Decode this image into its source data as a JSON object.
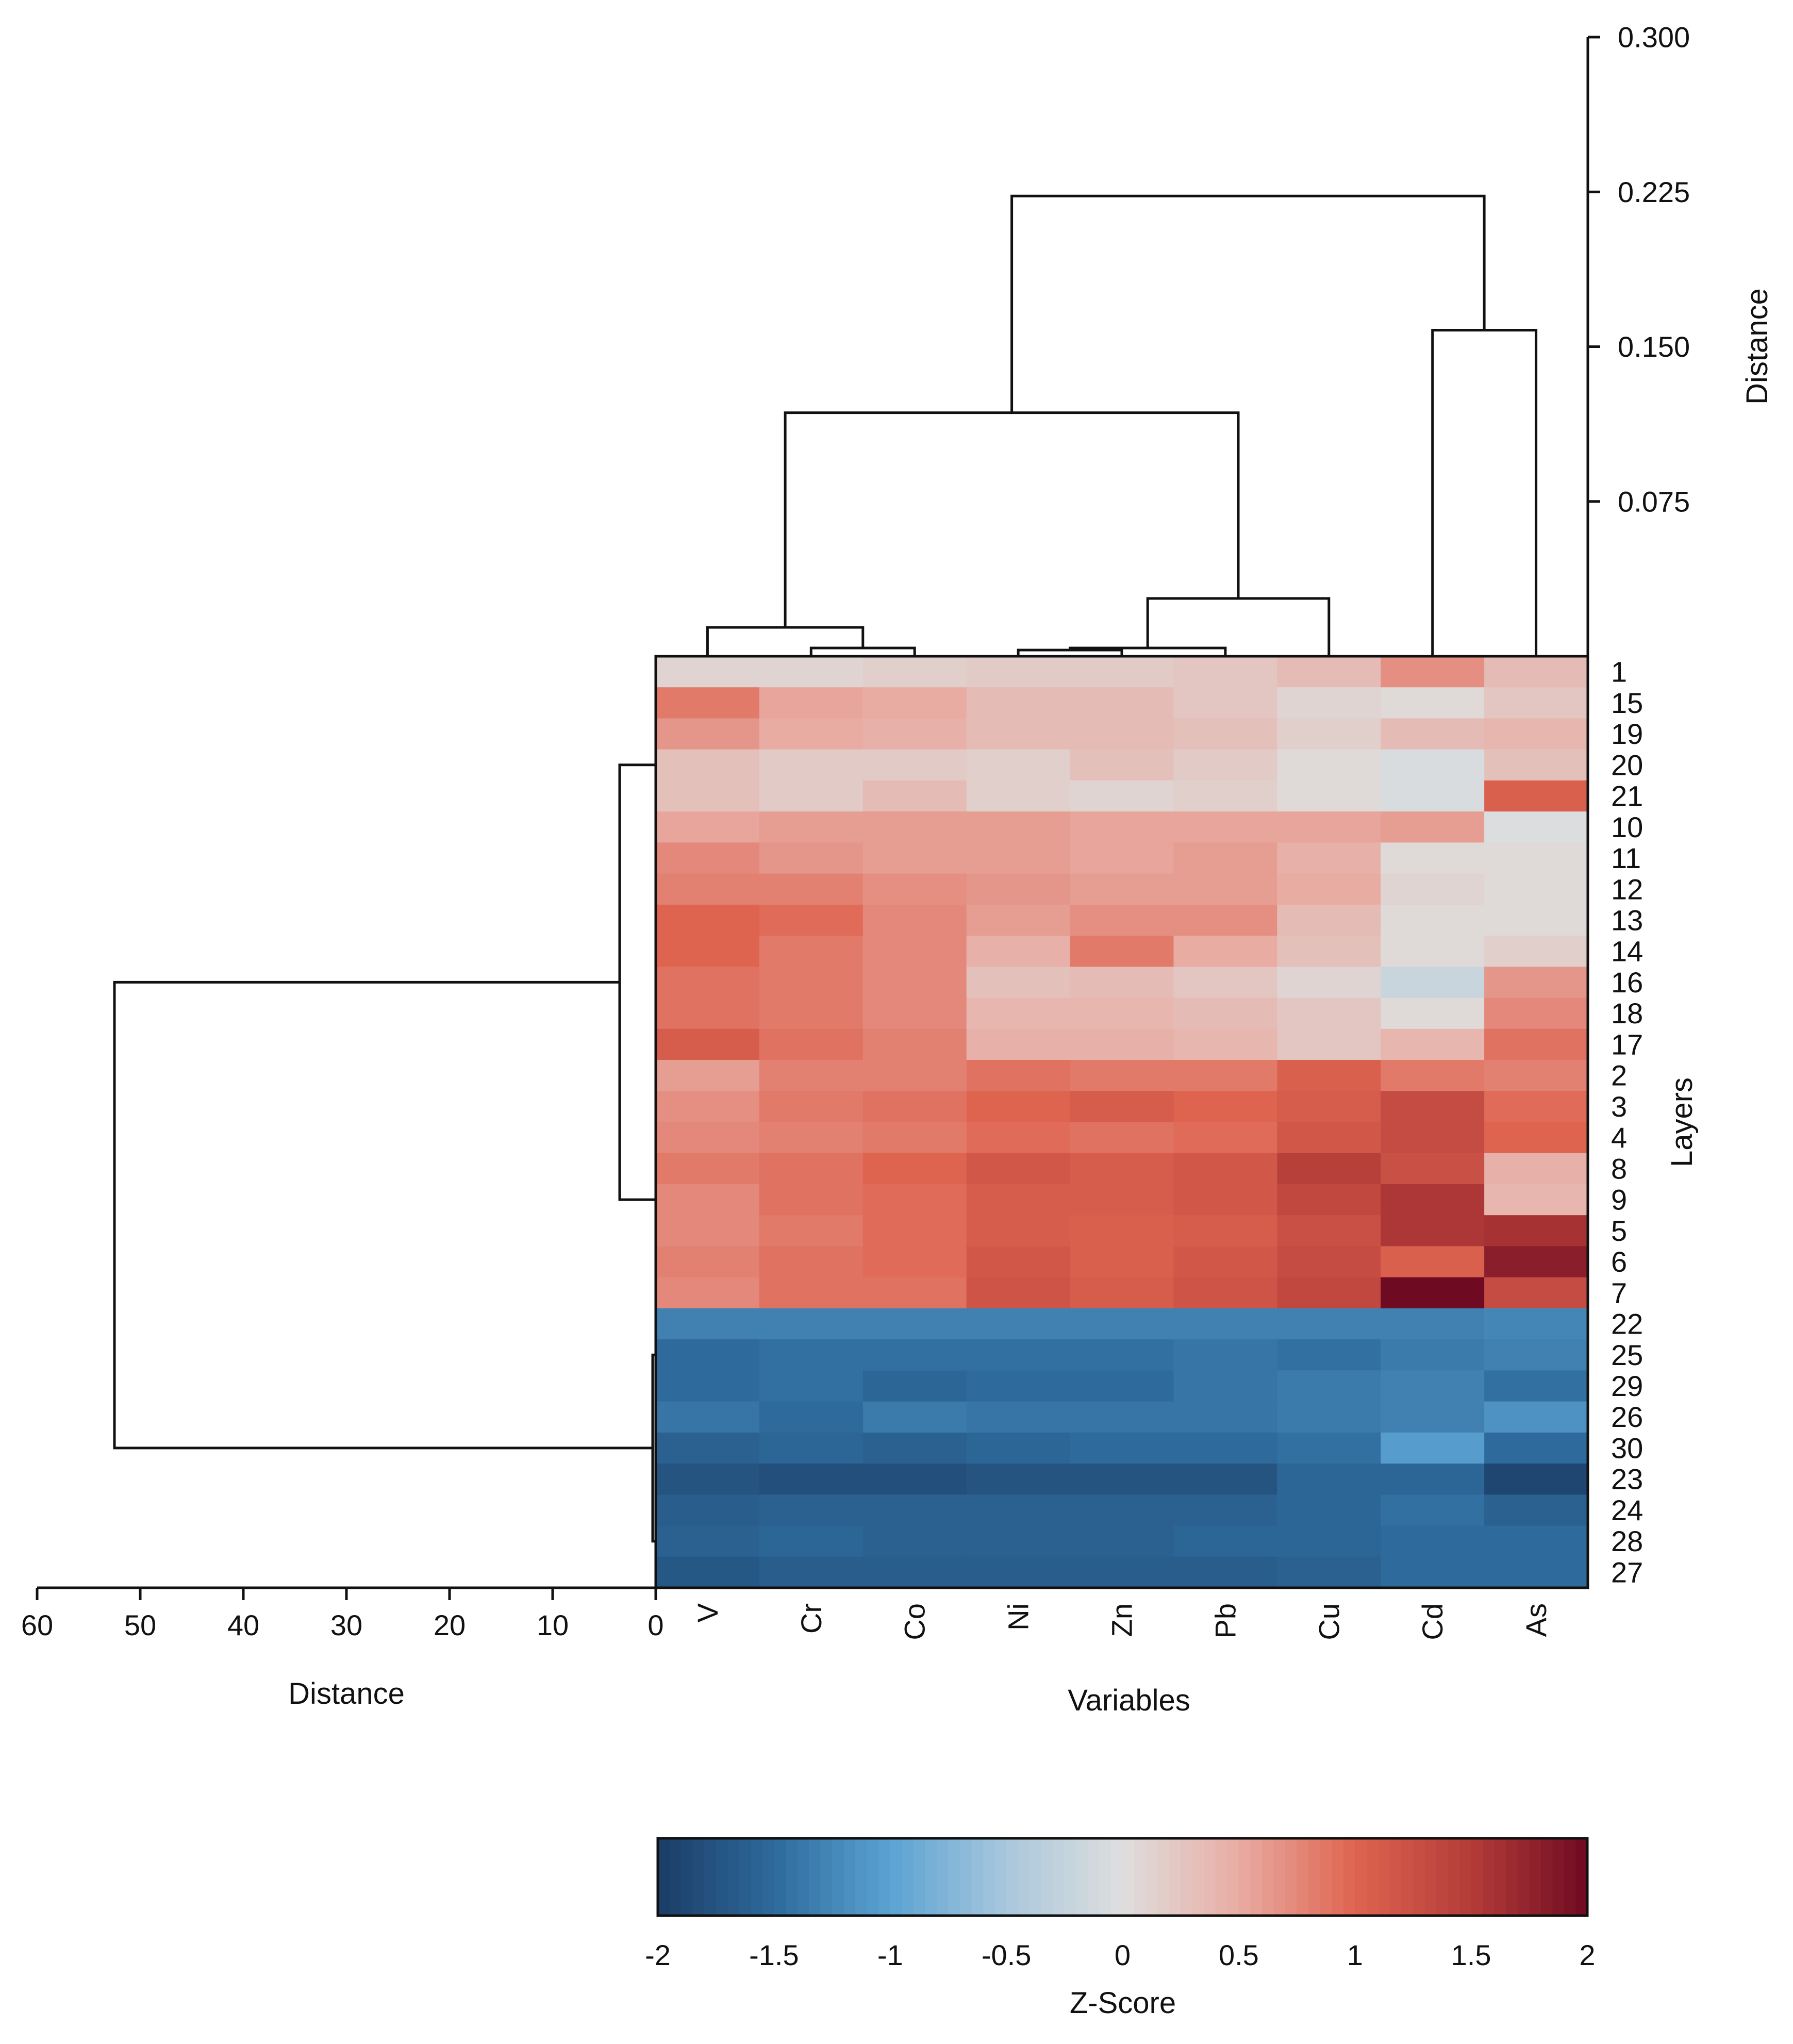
{
  "chart_data": {
    "type": "heatmap",
    "variables": [
      "V",
      "Cr",
      "Co",
      "Ni",
      "Zn",
      "Pb",
      "Cu",
      "Cd",
      "As"
    ],
    "layers": [
      "1",
      "15",
      "19",
      "20",
      "21",
      "10",
      "11",
      "12",
      "13",
      "14",
      "16",
      "18",
      "17",
      "2",
      "3",
      "4",
      "8",
      "9",
      "5",
      "6",
      "7",
      "22",
      "25",
      "29",
      "26",
      "30",
      "23",
      "24",
      "28",
      "27"
    ],
    "values": [
      [
        0.1,
        0.1,
        0.15,
        0.2,
        0.2,
        0.25,
        0.35,
        0.7,
        0.35
      ],
      [
        0.85,
        0.55,
        0.5,
        0.35,
        0.35,
        0.25,
        0.1,
        0.05,
        0.25
      ],
      [
        0.65,
        0.5,
        0.45,
        0.35,
        0.35,
        0.3,
        0.15,
        0.35,
        0.4
      ],
      [
        0.3,
        0.2,
        0.2,
        0.15,
        0.3,
        0.2,
        0.05,
        -0.05,
        0.3
      ],
      [
        0.3,
        0.2,
        0.35,
        0.15,
        0.1,
        0.15,
        0.05,
        -0.05,
        1.05
      ],
      [
        0.55,
        0.6,
        0.6,
        0.6,
        0.55,
        0.55,
        0.55,
        0.6,
        -0.02
      ],
      [
        0.75,
        0.65,
        0.6,
        0.6,
        0.55,
        0.6,
        0.45,
        0.05,
        0.05
      ],
      [
        0.8,
        0.8,
        0.7,
        0.65,
        0.6,
        0.6,
        0.5,
        0.1,
        0.05
      ],
      [
        1.0,
        0.95,
        0.75,
        0.6,
        0.7,
        0.7,
        0.35,
        0.05,
        0.05
      ],
      [
        1.0,
        0.85,
        0.75,
        0.45,
        0.85,
        0.5,
        0.3,
        0.05,
        0.15
      ],
      [
        0.9,
        0.85,
        0.75,
        0.3,
        0.35,
        0.25,
        0.1,
        -0.2,
        0.65
      ],
      [
        0.9,
        0.85,
        0.75,
        0.4,
        0.4,
        0.35,
        0.25,
        0.05,
        0.75
      ],
      [
        1.1,
        0.9,
        0.8,
        0.45,
        0.45,
        0.4,
        0.25,
        0.4,
        0.9
      ],
      [
        0.6,
        0.8,
        0.8,
        0.9,
        0.85,
        0.85,
        1.05,
        0.85,
        0.8
      ],
      [
        0.7,
        0.85,
        0.9,
        1.0,
        1.1,
        1.0,
        1.1,
        1.3,
        0.95
      ],
      [
        0.75,
        0.8,
        0.85,
        0.95,
        0.9,
        0.95,
        1.15,
        1.3,
        1.0
      ],
      [
        0.85,
        0.9,
        1.0,
        1.15,
        1.1,
        1.15,
        1.45,
        1.25,
        0.45
      ],
      [
        0.75,
        0.9,
        0.95,
        1.1,
        1.1,
        1.15,
        1.35,
        1.55,
        0.4
      ],
      [
        0.75,
        0.85,
        0.95,
        1.1,
        1.05,
        1.1,
        1.25,
        1.55,
        1.6
      ],
      [
        0.8,
        0.9,
        0.95,
        1.15,
        1.05,
        1.15,
        1.3,
        1.05,
        1.8
      ],
      [
        0.75,
        0.9,
        0.9,
        1.2,
        1.1,
        1.2,
        1.35,
        2.0,
        1.3
      ],
      [
        -1.3,
        -1.3,
        -1.3,
        -1.3,
        -1.3,
        -1.3,
        -1.3,
        -1.3,
        -1.25
      ],
      [
        -1.5,
        -1.45,
        -1.45,
        -1.45,
        -1.45,
        -1.4,
        -1.45,
        -1.35,
        -1.3
      ],
      [
        -1.5,
        -1.45,
        -1.55,
        -1.5,
        -1.5,
        -1.4,
        -1.35,
        -1.3,
        -1.45
      ],
      [
        -1.4,
        -1.5,
        -1.35,
        -1.4,
        -1.4,
        -1.4,
        -1.35,
        -1.3,
        -1.15
      ],
      [
        -1.6,
        -1.55,
        -1.6,
        -1.55,
        -1.5,
        -1.5,
        -1.45,
        -1.05,
        -1.5
      ],
      [
        -1.75,
        -1.8,
        -1.8,
        -1.75,
        -1.75,
        -1.75,
        -1.55,
        -1.55,
        -1.9
      ],
      [
        -1.65,
        -1.6,
        -1.6,
        -1.6,
        -1.6,
        -1.6,
        -1.55,
        -1.45,
        -1.6
      ],
      [
        -1.6,
        -1.55,
        -1.6,
        -1.6,
        -1.6,
        -1.55,
        -1.55,
        -1.5,
        -1.5
      ],
      [
        -1.7,
        -1.65,
        -1.65,
        -1.65,
        -1.65,
        -1.65,
        -1.6,
        -1.5,
        -1.5
      ]
    ],
    "xlabel": "Variables",
    "ylabel": "Layers",
    "colorbar": {
      "label": "Z-Score",
      "range": [
        -2,
        2
      ],
      "ticks": [
        "-2",
        "-1.5",
        "-1",
        "-0.5",
        "0",
        "0.5",
        "1",
        "1.5",
        "2"
      ],
      "colors": [
        "#1b3d66",
        "#2e6a9c",
        "#5aa3d2",
        "#a9c7dc",
        "#dedede",
        "#e8aca3",
        "#de6450",
        "#b43c38",
        "#6e0a22"
      ]
    },
    "column_dendrogram": {
      "axis_label": "Distance",
      "ticks": [
        "0.300",
        "0.225",
        "0.150",
        "0.075"
      ],
      "range": [
        0,
        0.3
      ],
      "merges": [
        {
          "a": "Ni",
          "b": "Zn",
          "height": 0.003
        },
        {
          "a": "Cr",
          "b": "Co",
          "height": 0.004
        },
        {
          "a": "Ni+Zn",
          "b": "Pb",
          "height": 0.004
        },
        {
          "a": "V",
          "b": "Cr+Co",
          "height": 0.014
        },
        {
          "a": "Ni+Zn+Pb",
          "b": "Cu",
          "height": 0.028
        },
        {
          "a": "V+Cr+Co",
          "b": "Ni+Zn+Pb+Cu",
          "height": 0.118
        },
        {
          "a": "Cd",
          "b": "As",
          "height": 0.158
        },
        {
          "a": "metals",
          "b": "Cd+As",
          "height": 0.223
        }
      ]
    },
    "row_dendrogram": {
      "axis_label": "Distance",
      "ticks": [
        "60",
        "50",
        "40",
        "30",
        "20",
        "10",
        "0"
      ],
      "range": [
        0,
        60
      ],
      "merges": [
        {
          "a": "1-7",
          "b": "1-7",
          "height": 3.5
        },
        {
          "a": "22-27",
          "b": "22-27",
          "height": 0.3
        },
        {
          "a": "positive cluster",
          "b": "negative cluster",
          "height": 52.5
        }
      ]
    }
  }
}
